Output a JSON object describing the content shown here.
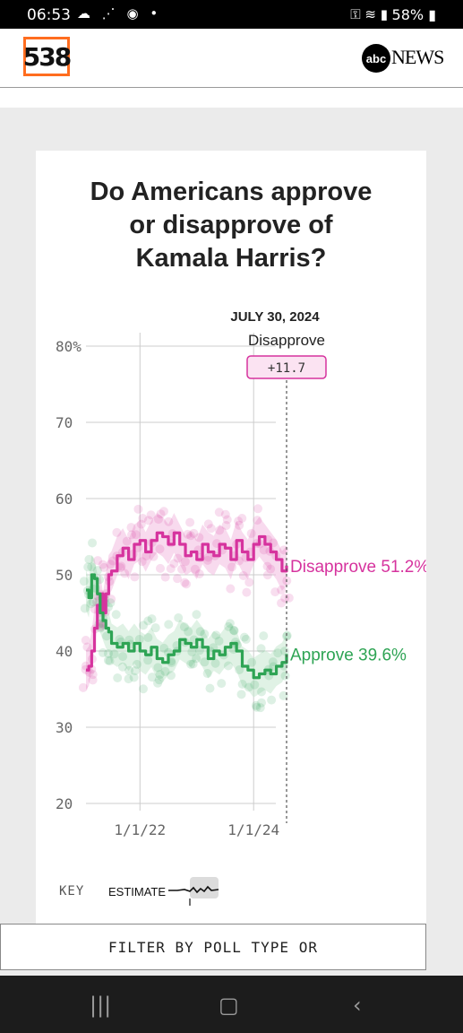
{
  "status_bar": {
    "time": "06:53",
    "battery": "58%"
  },
  "header": {
    "logo_text": "538",
    "abc_text": "abc",
    "news_text": "NEWS"
  },
  "chart_data": {
    "type": "line",
    "title": "Do Americans approve or disapprove of Kamala Harris?",
    "title_lines": [
      "Do Americans approve",
      "or disapprove of",
      "Kamala Harris?"
    ],
    "x_ticks": [
      "1/1/22",
      "1/1/24"
    ],
    "y_ticks": [
      "80%",
      "70",
      "60",
      "50",
      "40",
      "30",
      "20"
    ],
    "y_tick_values": [
      80,
      70,
      60,
      50,
      40,
      30,
      20
    ],
    "ylim": [
      20,
      80
    ],
    "xlim": [
      2021.05,
      2024.58
    ],
    "x_tick_values": [
      2022.0,
      2024.0
    ],
    "grid": true,
    "hover": {
      "date": "JULY 30, 2024",
      "label": "Disapprove",
      "margin": "+11.7",
      "x": 2024.58
    },
    "series": [
      {
        "name": "Disapprove",
        "end_label": "Disapprove 51.2%",
        "color": "#d6339e",
        "band_color": "#f3bce0",
        "final_value": 51.2,
        "x": [
          2021.05,
          2021.1,
          2021.15,
          2021.2,
          2021.25,
          2021.3,
          2021.35,
          2021.4,
          2021.45,
          2021.5,
          2021.6,
          2021.7,
          2021.8,
          2021.9,
          2022.0,
          2022.1,
          2022.2,
          2022.3,
          2022.4,
          2022.5,
          2022.6,
          2022.7,
          2022.8,
          2022.9,
          2023.0,
          2023.1,
          2023.2,
          2023.3,
          2023.4,
          2023.5,
          2023.6,
          2023.7,
          2023.8,
          2023.9,
          2024.0,
          2024.1,
          2024.2,
          2024.3,
          2024.4,
          2024.5,
          2024.58
        ],
        "values": [
          37.5,
          38.0,
          40.0,
          43.0,
          46.0,
          47.5,
          45.0,
          47.5,
          50.0,
          50.5,
          52.5,
          53.5,
          52.0,
          54.0,
          54.5,
          53.0,
          54.5,
          55.5,
          55.0,
          54.0,
          55.5,
          54.0,
          52.5,
          53.0,
          52.0,
          54.0,
          53.0,
          52.5,
          54.0,
          53.5,
          52.0,
          54.5,
          53.0,
          52.0,
          54.0,
          55.0,
          54.0,
          53.0,
          52.0,
          50.5,
          51.2
        ]
      },
      {
        "name": "Approve",
        "end_label": "Approve 39.6%",
        "color": "#2ea454",
        "band_color": "#c6e8d0",
        "final_value": 39.6,
        "x": [
          2021.05,
          2021.1,
          2021.15,
          2021.2,
          2021.25,
          2021.3,
          2021.35,
          2021.4,
          2021.45,
          2021.5,
          2021.6,
          2021.7,
          2021.8,
          2021.9,
          2022.0,
          2022.1,
          2022.2,
          2022.3,
          2022.4,
          2022.5,
          2022.6,
          2022.7,
          2022.8,
          2022.9,
          2023.0,
          2023.1,
          2023.2,
          2023.3,
          2023.4,
          2023.5,
          2023.6,
          2023.7,
          2023.8,
          2023.9,
          2024.0,
          2024.1,
          2024.2,
          2024.3,
          2024.4,
          2024.5,
          2024.58
        ],
        "values": [
          48.0,
          47.0,
          50.0,
          49.5,
          47.5,
          45.0,
          44.0,
          43.0,
          42.5,
          41.0,
          40.5,
          41.0,
          40.0,
          41.0,
          40.0,
          39.5,
          40.5,
          39.0,
          38.5,
          39.5,
          40.0,
          41.5,
          41.0,
          40.5,
          41.5,
          40.5,
          39.0,
          40.0,
          39.5,
          40.5,
          41.0,
          40.0,
          38.0,
          37.5,
          36.5,
          37.0,
          37.5,
          37.0,
          38.0,
          38.5,
          39.6
        ]
      }
    ],
    "key": {
      "label": "KEY",
      "estimate_label": "ESTIMATE"
    }
  },
  "filter_label": "FILTER BY POLL TYPE OR"
}
